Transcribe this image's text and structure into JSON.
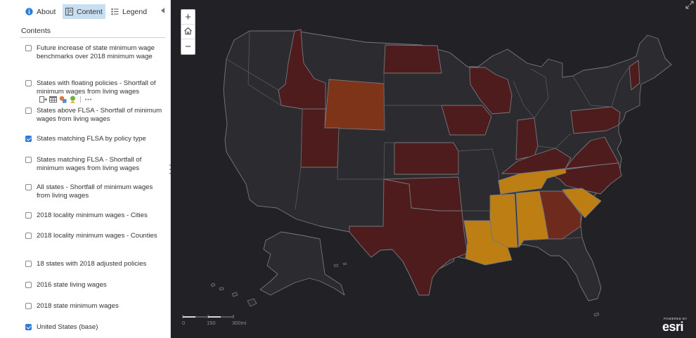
{
  "tabs": [
    {
      "label": "About",
      "icon": "info-icon"
    },
    {
      "label": "Content",
      "icon": "content-icon",
      "active": true
    },
    {
      "label": "Legend",
      "icon": "legend-icon"
    }
  ],
  "contents_title": "Contents",
  "layers": [
    {
      "label": "Future increase of state minimum wage benchmarks over 2018 minimum wage",
      "checked": false
    },
    {
      "label": "States with floating policies - Shortfall of minimum wages from living wages",
      "checked": false
    },
    {
      "label": "States above FLSA - Shortfall of minimum wages from living wages",
      "checked": false
    },
    {
      "label": "States matching FLSA by policy type",
      "checked": true
    },
    {
      "label": "States matching FLSA - Shortfall of minimum wages from living wages",
      "checked": false
    },
    {
      "label": "All states - Shortfall of minimum wages from living wages",
      "checked": false
    },
    {
      "label": "2018 locality minimum wages - Cities",
      "checked": false
    },
    {
      "label": "2018 locality minimum wages - Counties",
      "checked": false
    },
    {
      "label": "18 states with 2018 adjusted policies",
      "checked": false
    },
    {
      "label": "2016 state living wages",
      "checked": false
    },
    {
      "label": "2018 state minimum wages",
      "checked": false
    },
    {
      "label": "United States (base)",
      "checked": true
    }
  ],
  "layer_tools": [
    "transparency-icon",
    "table-icon",
    "symbology-icon",
    "legend-icon",
    "more-options-icon"
  ],
  "map": {
    "zoom_in": "+",
    "zoom_out": "−",
    "home_icon": "home-icon",
    "expand_icon": "expand-icon",
    "scale_labels": [
      "0",
      "150",
      "300mi"
    ],
    "attribution_small": "POWERED BY",
    "attribution_logo": "esri",
    "colors": {
      "background": "#222226",
      "base_state": "#2c2c30",
      "border": "#77777c",
      "dark_red": "#4e1c1c",
      "rust": "#7e3418",
      "brown": "#6e2a1c",
      "gold": "#bd7f14"
    }
  }
}
